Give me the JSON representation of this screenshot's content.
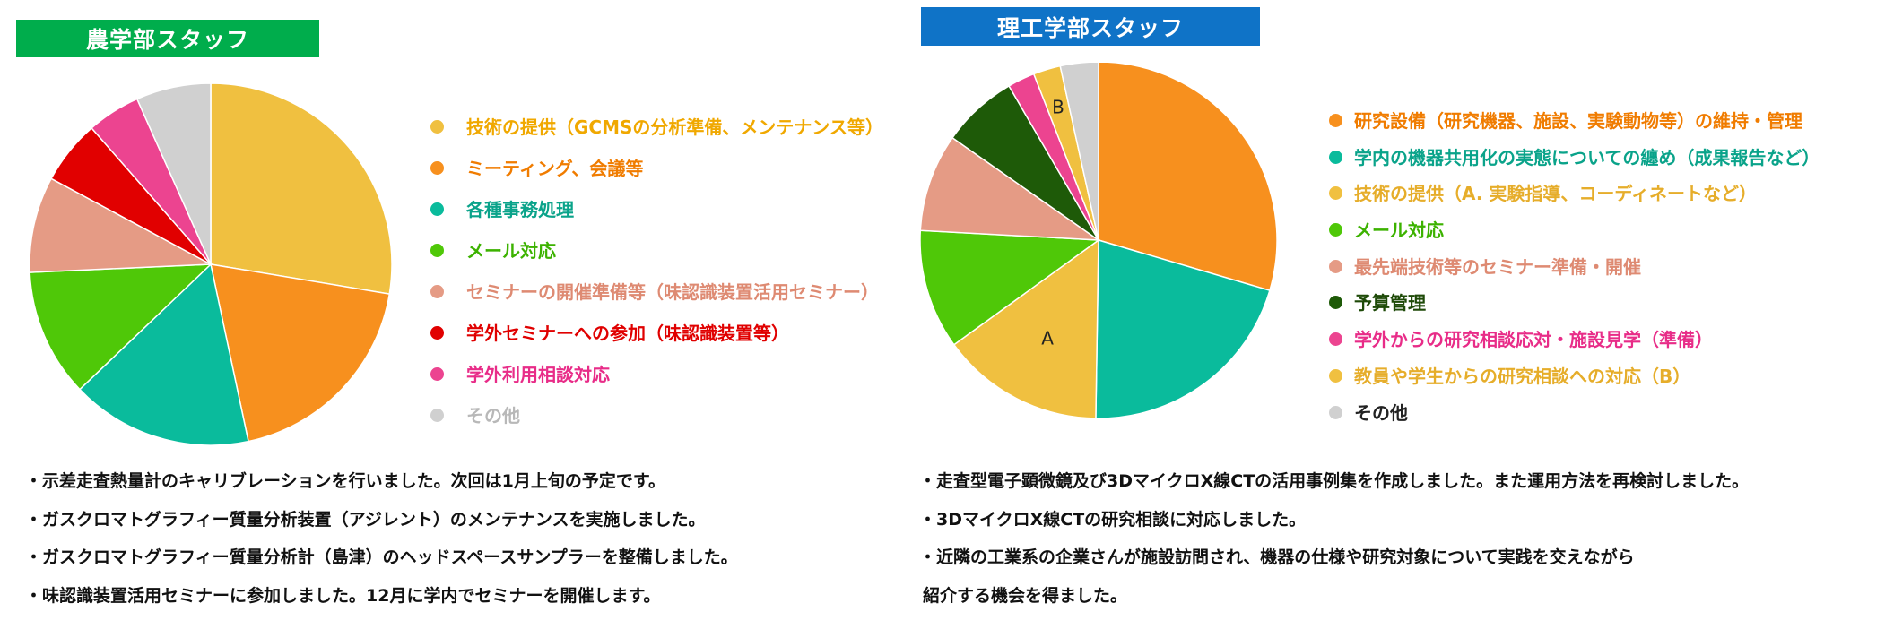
{
  "colors": {
    "title_left_bg": "#00ad4c",
    "title_right_bg": "#0f73c7"
  },
  "left_panel": {
    "title": "農学部スタッフ",
    "notes": [
      "・示差走査熱量計のキャリブレーションを行いました。次回は1月上旬の予定です。",
      "・ガスクロマトグラフィー質量分析装置（アジレント）のメンテナンスを実施しました。",
      "・ガスクロマトグラフィー質量分析計（島津）のヘッドスペースサンプラーを整備しました。",
      "・味認識装置活用セミナーに参加しました。12月に学内でセミナーを開催します。"
    ]
  },
  "right_panel": {
    "title": "理工学部スタッフ",
    "notes": [
      "・走査型電子顕微鏡及び3DマイクロX線CTの活用事例集を作成しました。また運用方法を再検討しました。",
      "・3DマイクロX線CTの研究相談に対応しました。",
      "・近隣の工業系の企業さんが施設訪問され、機器の仕様や研究対象について実践を交えながら",
      "紹介する機会を得ました。"
    ]
  },
  "chart_data": [
    {
      "type": "pie",
      "title": "農学部スタッフ",
      "start_angle_deg": 0,
      "direction": "clockwise",
      "series": [
        {
          "label": "技術の提供（GCMSの分析準備、メンテナンス等）",
          "value": 29,
          "color": "#f0c040",
          "text_color": "#f0a800"
        },
        {
          "label": "ミーティング、会議等",
          "value": 20,
          "color": "#f7901e",
          "text_color": "#f07c00"
        },
        {
          "label": "各種事務処理",
          "value": 17,
          "color": "#0abb9c",
          "text_color": "#0aa38a"
        },
        {
          "label": "メール対応",
          "value": 12,
          "color": "#4fc808",
          "text_color": "#3cb200"
        },
        {
          "label": "セミナーの開催準備等（味認識装置活用セミナー）",
          "value": 9,
          "color": "#e59b85",
          "text_color": "#de8a72"
        },
        {
          "label": "学外セミナーへの参加（味認識装置等）",
          "value": 6,
          "color": "#e10000",
          "text_color": "#e00000"
        },
        {
          "label": "学外利用相談対応",
          "value": 5,
          "color": "#ec4490",
          "text_color": "#e82c88"
        },
        {
          "label": "その他",
          "value": 7,
          "color": "#d0d0d0",
          "text_color": "#b8b8b8"
        }
      ]
    },
    {
      "type": "pie",
      "title": "理工学部スタッフ",
      "start_angle_deg": 0,
      "direction": "clockwise",
      "series": [
        {
          "label": "研究設備（研究機器、施設、実験動物等）の維持・管理",
          "value": 30,
          "color": "#f7901e",
          "text_color": "#f07c00"
        },
        {
          "label": "学内の機器共用化の実態についての纏め（成果報告など）",
          "value": 21,
          "color": "#0abb9c",
          "text_color": "#0aa38a"
        },
        {
          "label": "技術の提供（A. 実験指導、コーディネートなど）",
          "value": 15,
          "color": "#f0c040",
          "text_color": "#e6ad2a",
          "slice_label": "A"
        },
        {
          "label": "メール対応",
          "value": 11,
          "color": "#4fc808",
          "text_color": "#3cb200"
        },
        {
          "label": "最先端技術等のセミナー準備・開催",
          "value": 9,
          "color": "#e59b85",
          "text_color": "#de8a72"
        },
        {
          "label": "予算管理",
          "value": 7,
          "color": "#1e5a08",
          "text_color": "#1e4a08"
        },
        {
          "label": "学外からの研究相談応対・施設見学（準備）",
          "value": 2.5,
          "color": "#ec4490",
          "text_color": "#e82c88"
        },
        {
          "label": "教員や学生からの研究相談への対応（B）",
          "value": 2.5,
          "color": "#f0c040",
          "text_color": "#e6ad2a",
          "slice_label": "B"
        },
        {
          "label": "その他",
          "value": 3.5,
          "color": "#d0d0d0",
          "text_color": "#222222"
        }
      ]
    }
  ]
}
